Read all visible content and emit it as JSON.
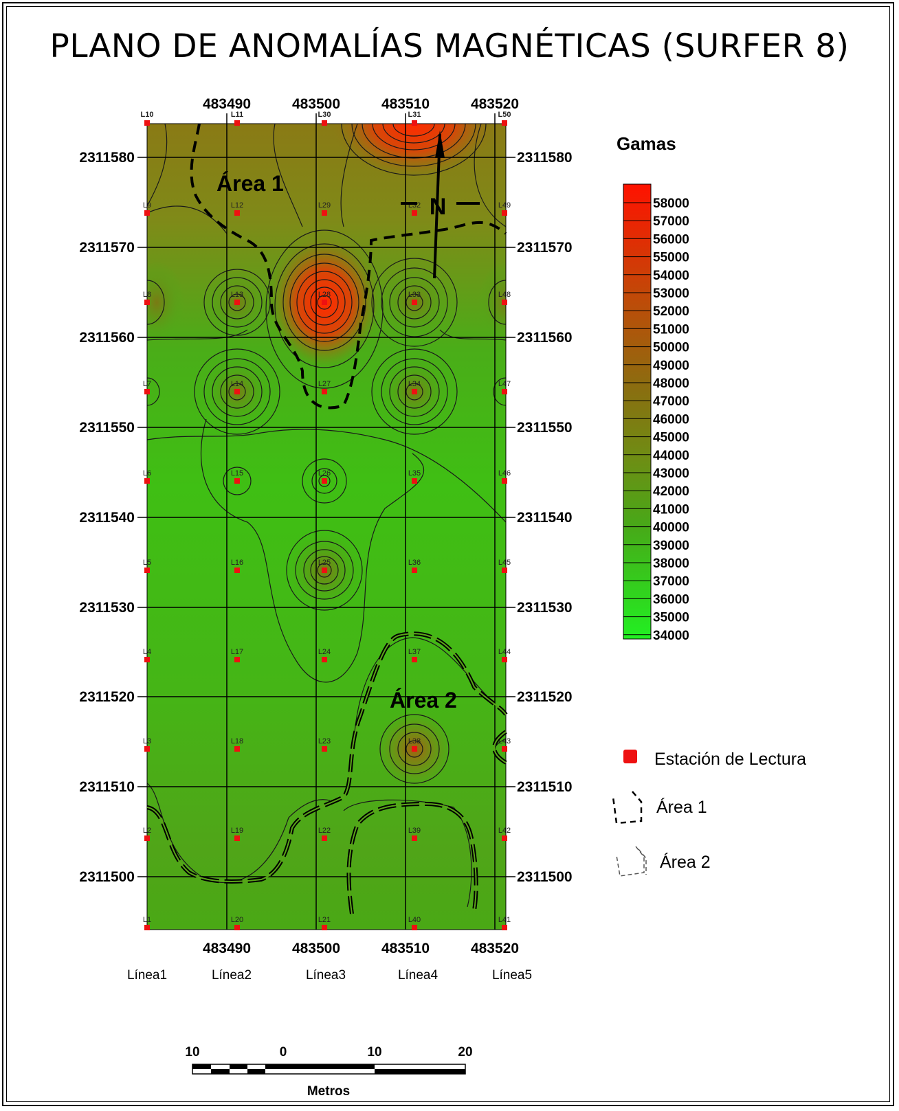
{
  "title": "PLANO DE ANOMALÍAS MAGNÉTICAS (SURFER 8)",
  "map": {
    "x_ticks": [
      "483490",
      "483500",
      "483510",
      "483520"
    ],
    "y_ticks": [
      "2311580",
      "2311570",
      "2311560",
      "2311550",
      "2311540",
      "2311530",
      "2311520",
      "2311510",
      "2311500"
    ],
    "north_label": "N",
    "area1_label": "Área 1",
    "area2_label": "Área 2",
    "columns": [
      {
        "top": "L10",
        "stations": [
          "L9",
          "L8",
          "L7",
          "L6",
          "L5",
          "L4",
          "L3",
          "L2",
          "L1"
        ]
      },
      {
        "top": "L11",
        "stations": [
          "L12",
          "L13",
          "L14",
          "L15",
          "L16",
          "L17",
          "L18",
          "L19",
          "L20"
        ]
      },
      {
        "top": "L30",
        "stations": [
          "L29",
          "L28",
          "L27",
          "L26",
          "L25",
          "L24",
          "L23",
          "L22",
          "L21"
        ]
      },
      {
        "top": "L31",
        "stations": [
          "L32",
          "L33",
          "L34",
          "L35",
          "L36",
          "L37",
          "L38",
          "L39",
          "L40"
        ]
      },
      {
        "top": "L50",
        "stations": [
          "L49",
          "L48",
          "L47",
          "L46",
          "L45",
          "L44",
          "L43",
          "L42",
          "L41"
        ]
      }
    ],
    "colors": {
      "low": "#22ee22",
      "mid": "#7a9a10",
      "high": "#ff1100"
    }
  },
  "legend": {
    "title": "Gamas",
    "values": [
      "58000",
      "57000",
      "56000",
      "55000",
      "54000",
      "53000",
      "52000",
      "51000",
      "50000",
      "49000",
      "48000",
      "47000",
      "46000",
      "45000",
      "44000",
      "43000",
      "42000",
      "41000",
      "40000",
      "39000",
      "38000",
      "37000",
      "36000",
      "35000",
      "34000"
    ],
    "station_label": "Estación de Lectura",
    "area1_label": "Área 1",
    "area2_label": "Área 2"
  },
  "lines": [
    "Línea1",
    "Línea2",
    "Línea3",
    "Línea4",
    "Línea5"
  ],
  "scale": {
    "labels": [
      "10",
      "0",
      "10",
      "20"
    ],
    "unit": "Metros"
  }
}
